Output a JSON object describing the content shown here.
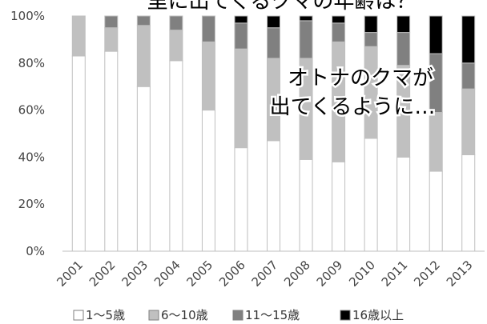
{
  "chart_data": {
    "type": "bar",
    "stacked": true,
    "title": "里に出てくるクマの年齢は？",
    "annotation": [
      "オトナのクマが",
      "出てくるように…"
    ],
    "categories": [
      "2001",
      "2002",
      "2003",
      "2004",
      "2005",
      "2006",
      "2007",
      "2008",
      "2009",
      "2010",
      "2011",
      "2012",
      "2013"
    ],
    "ylim": [
      0,
      100
    ],
    "yticks": [
      "0%",
      "20%",
      "40%",
      "60%",
      "80%",
      "100%"
    ],
    "series": [
      {
        "name": "1～5歳",
        "color": "#ffffff",
        "values": [
          83,
          85,
          70,
          81,
          60,
          44,
          47,
          39,
          38,
          48,
          40,
          34,
          41
        ]
      },
      {
        "name": "6～10歳",
        "color": "#c0c0c0",
        "values": [
          17,
          10,
          26,
          13,
          29,
          42,
          35,
          43,
          51,
          39,
          39,
          25,
          28
        ]
      },
      {
        "name": "11～15歳",
        "color": "#808080",
        "values": [
          0,
          5,
          4,
          6,
          11,
          11,
          13,
          16,
          8,
          6,
          14,
          25,
          11
        ]
      },
      {
        "name": "16歳以上",
        "color": "#000000",
        "values": [
          0,
          0,
          0,
          0,
          0,
          3,
          5,
          2,
          3,
          7,
          7,
          16,
          20
        ]
      }
    ],
    "legend_position": "bottom",
    "grid": false
  }
}
